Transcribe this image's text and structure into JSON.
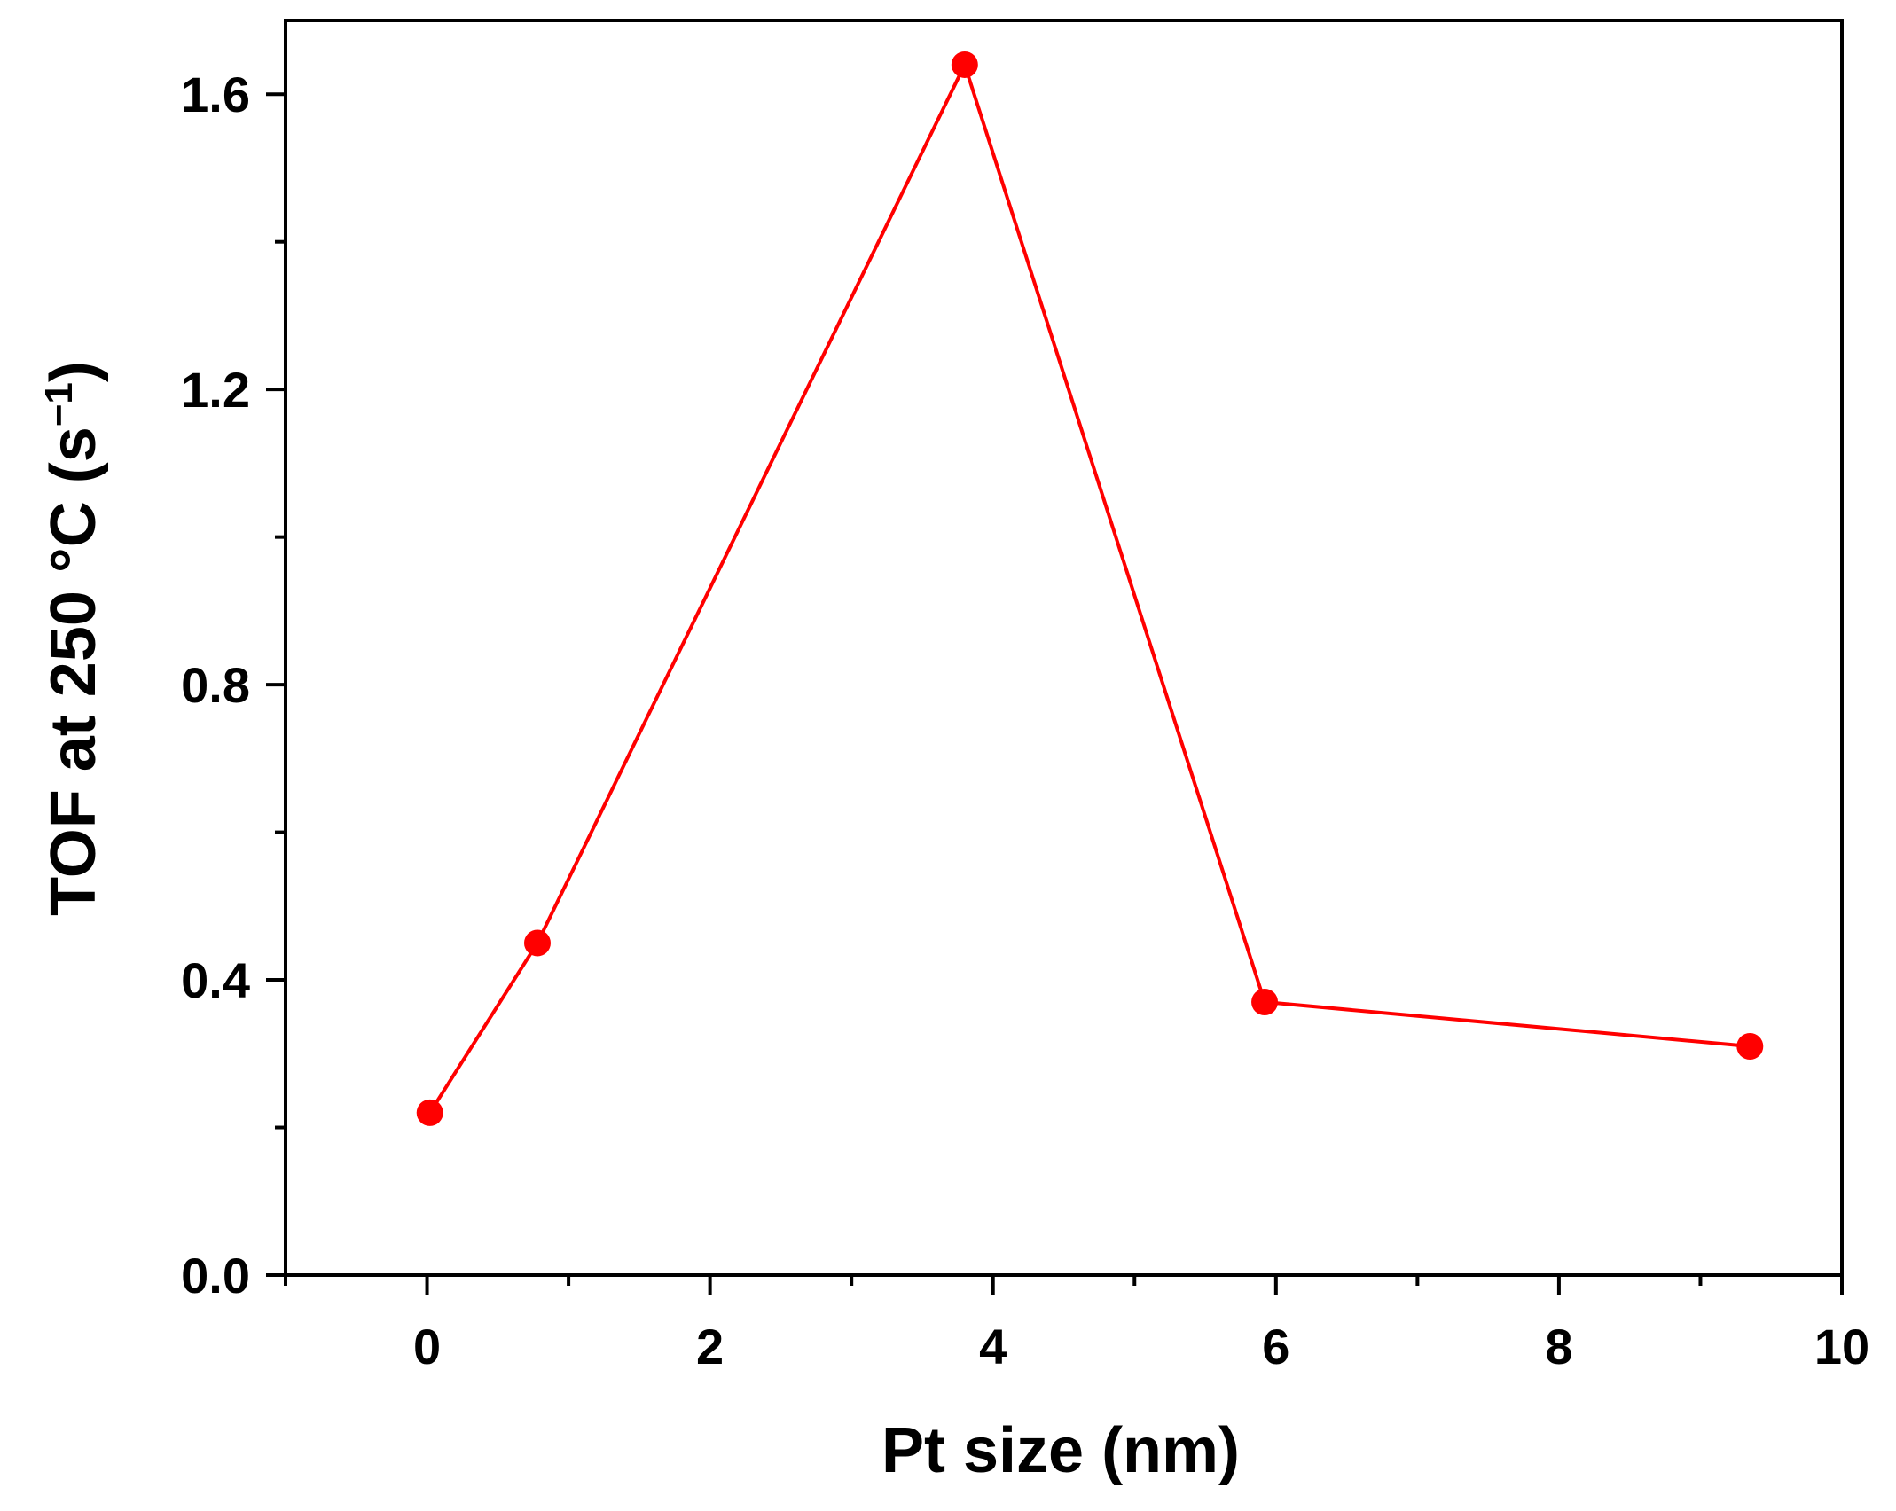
{
  "chart_data": {
    "type": "line",
    "title": "",
    "xlabel": "Pt size (nm)",
    "ylabel_main": "TOF at 250 °C (s",
    "ylabel_sup": "−1",
    "ylabel_close": ")",
    "xlim": [
      -1,
      10
    ],
    "ylim": [
      0,
      1.7
    ],
    "x_ticks": [
      0,
      2,
      4,
      6,
      8,
      10
    ],
    "x_tick_labels": [
      "0",
      "2",
      "4",
      "6",
      "8",
      "10"
    ],
    "x_minor_ticks": [
      -1,
      1,
      3,
      5,
      7,
      9
    ],
    "y_ticks": [
      0,
      0.4,
      0.8,
      1.2,
      1.6
    ],
    "y_tick_labels": [
      "0.0",
      "0.4",
      "0.8",
      "1.2",
      "1.6"
    ],
    "y_minor_ticks": [
      0.2,
      0.6,
      1.0,
      1.4
    ],
    "grid": false,
    "series": [
      {
        "color": "#ff0000",
        "marker": "circle",
        "x": [
          0.02,
          0.78,
          3.8,
          5.92,
          9.35
        ],
        "y": [
          0.22,
          0.45,
          1.64,
          0.37,
          0.31
        ]
      }
    ]
  }
}
